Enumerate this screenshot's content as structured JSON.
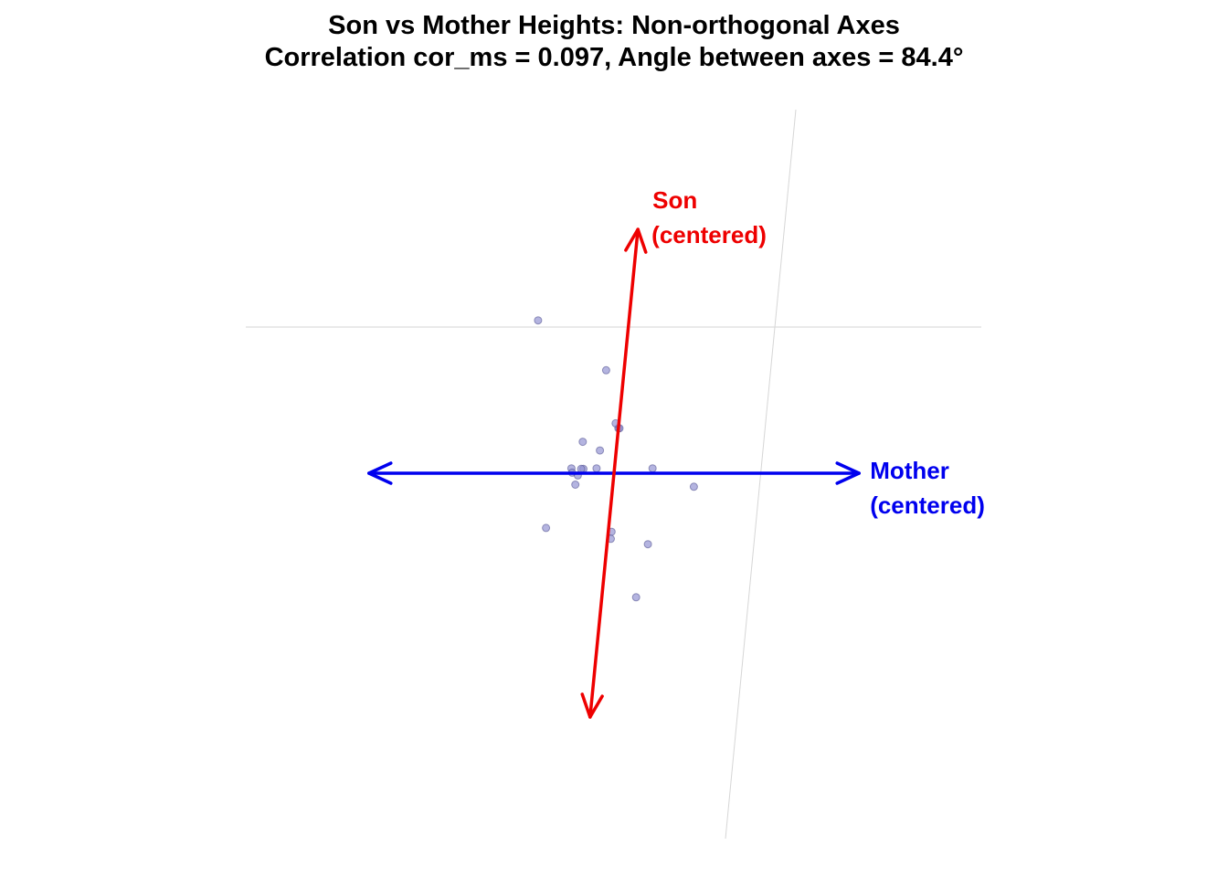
{
  "chart_data": {
    "type": "scatter",
    "title": "Son vs Mother Heights: Non-orthogonal Axes",
    "subtitle": "Correlation cor_ms = 0.097, Angle between axes = 84.4°",
    "axes": [
      {
        "name": "Mother",
        "label_lines": [
          "Mother",
          "(centered)"
        ],
        "color": "#0000ee",
        "direction_deg": 0
      },
      {
        "name": "Son",
        "label_lines": [
          "Son",
          "(centered)"
        ],
        "color": "#ee0000",
        "direction_deg": 84.4
      }
    ],
    "cor_ms": 0.097,
    "angle_between_axes_deg": 84.4,
    "point_color": "#8c8cd0",
    "grid": true,
    "points": [
      {
        "mother": -1.67,
        "son": 2.82
      },
      {
        "mother": -0.33,
        "son": 1.9
      },
      {
        "mother": 0.0,
        "son": 0.83
      },
      {
        "mother": 0.02,
        "son": 0.83
      },
      {
        "mother": -0.06,
        "son": 0.92
      },
      {
        "mother": -0.63,
        "son": 0.58
      },
      {
        "mother": -0.3,
        "son": 0.42
      },
      {
        "mother": -0.79,
        "son": 0.09
      },
      {
        "mother": -0.57,
        "son": 0.08
      },
      {
        "mother": -0.61,
        "son": 0.08
      },
      {
        "mother": -0.33,
        "son": 0.09
      },
      {
        "mother": 0.7,
        "son": 0.09
      },
      {
        "mother": -0.77,
        "son": 0.01
      },
      {
        "mother": -0.66,
        "son": -0.04
      },
      {
        "mother": 1.49,
        "son": -0.25
      },
      {
        "mother": -0.69,
        "son": -0.21
      },
      {
        "mother": -1.15,
        "son": -1.01
      },
      {
        "mother": 0.75,
        "son": -1.31
      },
      {
        "mother": 0.06,
        "son": -1.08
      },
      {
        "mother": 0.06,
        "son": -1.21
      },
      {
        "mother": 0.63,
        "son": -2.29
      }
    ]
  }
}
